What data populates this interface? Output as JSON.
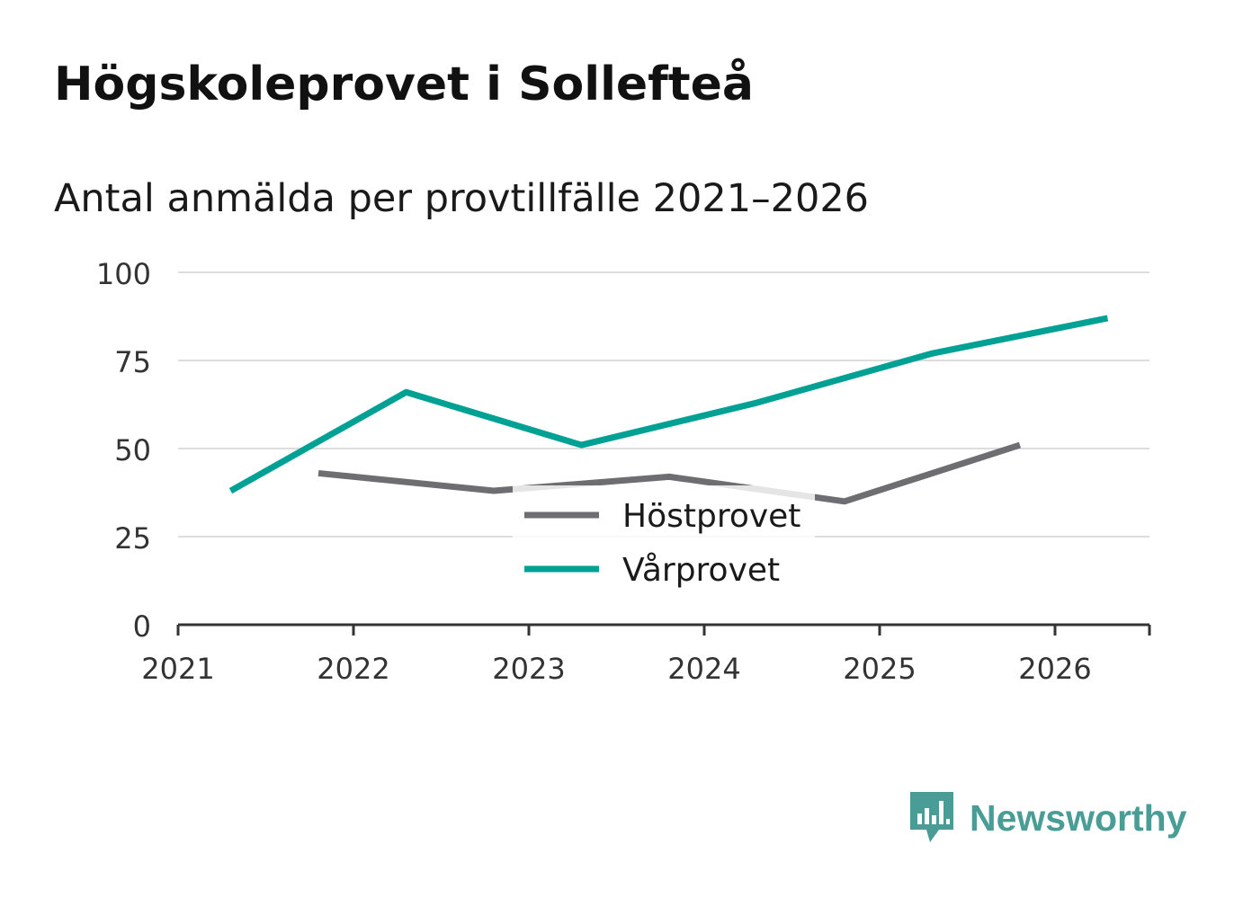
{
  "title": "Högskoleprovet i Sollefteå",
  "subtitle": "Antal anmälda per provtillfälle 2021–2026",
  "brand": {
    "name": "Newsworthy",
    "logo_icon": "newsworthy-chart-bubble-icon",
    "color": "#4a9d96"
  },
  "colors": {
    "hostprovet": "#6d6d72",
    "varprovet": "#00a195",
    "grid": "#dddddd",
    "axis": "#333333"
  },
  "chart_data": {
    "type": "line",
    "title": "Högskoleprovet i Sollefteå",
    "subtitle": "Antal anmälda per provtillfälle 2021–2026",
    "xlabel": "",
    "ylabel": "",
    "xlim": [
      2021,
      2026.55
    ],
    "ylim": [
      0,
      100
    ],
    "x_ticks": [
      "2021",
      "2022",
      "2023",
      "2024",
      "2025",
      "2026"
    ],
    "y_ticks": [
      "0",
      "25",
      "50",
      "75",
      "100"
    ],
    "grid": true,
    "legend_position": "bottom-center",
    "series": [
      {
        "name": "Höstprovet",
        "color": "#6d6d72",
        "x": [
          2021.8,
          2022.8,
          2023.8,
          2024.8,
          2025.8
        ],
        "values": [
          43,
          38,
          42,
          35,
          51
        ]
      },
      {
        "name": "Vårprovet",
        "color": "#00a195",
        "x": [
          2021.3,
          2022.3,
          2023.3,
          2024.3,
          2025.3,
          2026.3
        ],
        "values": [
          38,
          66,
          51,
          63,
          77,
          87
        ]
      }
    ]
  }
}
